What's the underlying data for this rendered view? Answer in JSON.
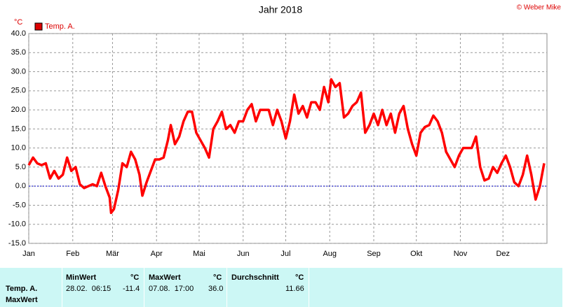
{
  "chart_data": {
    "type": "line",
    "title": "Jahr 2018",
    "copyright": "© Weber Mike",
    "y_unit": "°C",
    "xlim": [
      0,
      365
    ],
    "xticks": [
      {
        "value": 0,
        "label": "Jan"
      },
      {
        "value": 31,
        "label": "Feb"
      },
      {
        "value": 59,
        "label": "Mär"
      },
      {
        "value": 90,
        "label": "Apr"
      },
      {
        "value": 120,
        "label": "Mai"
      },
      {
        "value": 151,
        "label": "Jun"
      },
      {
        "value": 181,
        "label": "Jul"
      },
      {
        "value": 212,
        "label": "Aug"
      },
      {
        "value": 243,
        "label": "Sep"
      },
      {
        "value": 273,
        "label": "Okt"
      },
      {
        "value": 304,
        "label": "Nov"
      },
      {
        "value": 334,
        "label": "Dez"
      }
    ],
    "ylim": [
      -15,
      40
    ],
    "yticks": [
      {
        "value": 40,
        "label": "40.0"
      },
      {
        "value": 35,
        "label": "35.0"
      },
      {
        "value": 30,
        "label": "30.0"
      },
      {
        "value": 25,
        "label": "25.0"
      },
      {
        "value": 20,
        "label": "20.0"
      },
      {
        "value": 15,
        "label": "15.0"
      },
      {
        "value": 10,
        "label": "10.0"
      },
      {
        "value": 5,
        "label": "5.0"
      },
      {
        "value": 0,
        "label": "0.0"
      },
      {
        "value": -5,
        "label": "-5.0"
      },
      {
        "value": -10,
        "label": "-10.0"
      },
      {
        "value": -15,
        "label": "-15.0"
      }
    ],
    "grid": true,
    "x": [
      0,
      3,
      6,
      9,
      12,
      15,
      18,
      21,
      24,
      27,
      30,
      33,
      36,
      39,
      42,
      45,
      48,
      51,
      54,
      57,
      58,
      60,
      63,
      66,
      69,
      72,
      75,
      78,
      80,
      83,
      86,
      89,
      92,
      95,
      98,
      100,
      103,
      106,
      109,
      112,
      115,
      118,
      121,
      124,
      127,
      130,
      133,
      136,
      139,
      142,
      145,
      148,
      151,
      154,
      157,
      160,
      163,
      166,
      169,
      172,
      175,
      178,
      181,
      184,
      187,
      190,
      193,
      196,
      199,
      202,
      205,
      208,
      211,
      213,
      216,
      219,
      222,
      225,
      228,
      231,
      234,
      237,
      240,
      243,
      246,
      249,
      252,
      255,
      258,
      261,
      264,
      267,
      270,
      273,
      276,
      279,
      282,
      285,
      288,
      291,
      294,
      297,
      300,
      303,
      306,
      309,
      312,
      315,
      318,
      321,
      324,
      327,
      330,
      333,
      336,
      339,
      342,
      345,
      348,
      351,
      354,
      357,
      360,
      363
    ],
    "series": [
      {
        "name": "Temp. A.",
        "color": "#ff0000",
        "values": [
          5.5,
          7.5,
          6,
          5.5,
          6,
          2,
          4,
          2,
          3,
          7.5,
          4,
          5,
          0.5,
          -0.5,
          0,
          0.5,
          0,
          3.5,
          0,
          -3,
          -7,
          -6,
          -1,
          6,
          5,
          9,
          7,
          3,
          -2.5,
          1,
          4,
          7,
          7,
          7.5,
          12,
          16,
          11,
          13,
          17,
          19.5,
          19.5,
          14,
          12,
          10,
          7.5,
          15,
          17,
          19.5,
          15,
          16,
          14,
          17,
          17,
          20,
          21.5,
          17,
          20,
          20,
          20,
          16,
          20,
          17,
          12.5,
          17,
          24,
          19,
          21,
          18,
          22,
          22,
          20,
          26,
          22,
          28,
          26,
          27,
          18,
          19,
          21,
          22,
          24.5,
          14,
          16,
          19,
          16,
          20,
          16,
          19,
          14,
          19,
          21,
          15,
          11,
          8,
          14,
          15.5,
          16,
          18.5,
          17,
          14,
          9,
          7,
          5,
          8,
          10,
          10,
          10,
          13,
          5,
          1.5,
          2,
          5,
          3.5,
          6,
          8,
          5,
          1,
          0,
          3,
          8,
          3,
          -3.5,
          0,
          6
        ]
      }
    ]
  },
  "table": {
    "header": [
      "MinWert",
      "°C",
      "MaxWert",
      "°C",
      "Durchschnitt",
      "°C"
    ],
    "rows": [
      [
        "Temp. A.",
        "28.02.  06:15",
        "-11.4",
        "07.08.  17:00",
        "36.0",
        "11.66"
      ],
      [
        "MaxWert"
      ]
    ]
  }
}
